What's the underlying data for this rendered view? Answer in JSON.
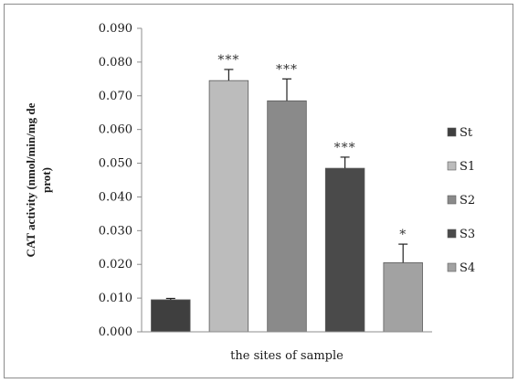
{
  "chart_data": {
    "type": "bar",
    "categories": [
      "St",
      "S1",
      "S2",
      "S3",
      "S4"
    ],
    "values": [
      0.0095,
      0.0745,
      0.0685,
      0.0485,
      0.0205
    ],
    "errors": [
      0.0004,
      0.0033,
      0.0065,
      0.0033,
      0.0055
    ],
    "significance": [
      "",
      "***",
      "***",
      "***",
      "*"
    ],
    "colors": [
      "#3f3f3f",
      "#bcbcbc",
      "#8a8a8a",
      "#4a4a4a",
      "#a2a2a2"
    ],
    "xlabel": "the sites of sample",
    "ylabel_lines": [
      "CAT activity (nmol/min/mg de",
      "prot)"
    ],
    "ylim": [
      0,
      0.09
    ],
    "yticks": [
      "0.000",
      "0.010",
      "0.020",
      "0.030",
      "0.040",
      "0.050",
      "0.060",
      "0.070",
      "0.080",
      "0.090"
    ],
    "legend_position": "right",
    "grid": false
  }
}
